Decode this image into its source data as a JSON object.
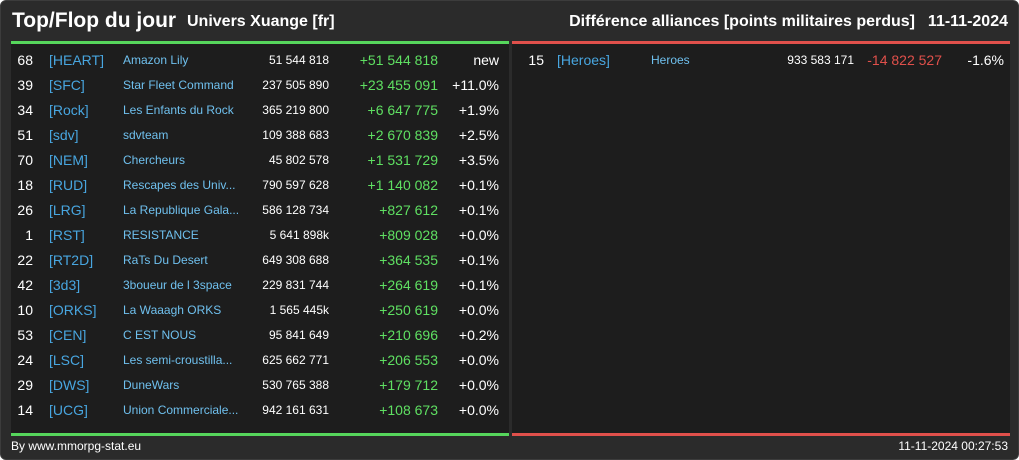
{
  "header": {
    "title": "Top/Flop du jour",
    "universe": "Univers Xuange [fr]",
    "subtitle": "Différence alliances [points militaires perdus]",
    "date": "11-11-2024"
  },
  "top": [
    {
      "rank": "68",
      "tag": "[HEART]",
      "name": "Amazon Lily",
      "points": "51 544 818",
      "diff": "+51 544 818",
      "pct": "new"
    },
    {
      "rank": "39",
      "tag": "[SFC]",
      "name": "Star Fleet Command",
      "points": "237 505 890",
      "diff": "+23 455 091",
      "pct": "+11.0%"
    },
    {
      "rank": "34",
      "tag": "[Rock]",
      "name": "Les Enfants du Rock",
      "points": "365 219 800",
      "diff": "+6 647 775",
      "pct": "+1.9%"
    },
    {
      "rank": "51",
      "tag": "[sdv]",
      "name": "sdvteam",
      "points": "109 388 683",
      "diff": "+2 670 839",
      "pct": "+2.5%"
    },
    {
      "rank": "70",
      "tag": "[NEM]",
      "name": "Chercheurs",
      "points": "45 802 578",
      "diff": "+1 531 729",
      "pct": "+3.5%"
    },
    {
      "rank": "18",
      "tag": "[RUD]",
      "name": "Rescapes des Univ...",
      "points": "790 597 628",
      "diff": "+1 140 082",
      "pct": "+0.1%"
    },
    {
      "rank": "26",
      "tag": "[LRG]",
      "name": "La Republique Gala...",
      "points": "586 128 734",
      "diff": "+827 612",
      "pct": "+0.1%"
    },
    {
      "rank": "1",
      "tag": "[RST]",
      "name": "RESISTANCE",
      "points": "5 641 898k",
      "diff": "+809 028",
      "pct": "+0.0%"
    },
    {
      "rank": "22",
      "tag": "[RT2D]",
      "name": "RaTs Du Desert",
      "points": "649 308 688",
      "diff": "+364 535",
      "pct": "+0.1%"
    },
    {
      "rank": "42",
      "tag": "[3d3]",
      "name": "3boueur de l 3space",
      "points": "229 831 744",
      "diff": "+264 619",
      "pct": "+0.1%"
    },
    {
      "rank": "10",
      "tag": "[ORKS]",
      "name": "La Waaagh ORKS",
      "points": "1 565 445k",
      "diff": "+250 619",
      "pct": "+0.0%"
    },
    {
      "rank": "53",
      "tag": "[CEN]",
      "name": "C EST NOUS",
      "points": "95 841 649",
      "diff": "+210 696",
      "pct": "+0.2%"
    },
    {
      "rank": "24",
      "tag": "[LSC]",
      "name": "Les semi-croustilla...",
      "points": "625 662 771",
      "diff": "+206 553",
      "pct": "+0.0%"
    },
    {
      "rank": "29",
      "tag": "[DWS]",
      "name": "DuneWars",
      "points": "530 765 388",
      "diff": "+179 712",
      "pct": "+0.0%"
    },
    {
      "rank": "14",
      "tag": "[UCG]",
      "name": "Union Commerciale...",
      "points": "942 161 631",
      "diff": "+108 673",
      "pct": "+0.0%"
    }
  ],
  "flop": [
    {
      "rank": "15",
      "tag": "[Heroes]",
      "name": "Heroes",
      "points": "933 583 171",
      "diff": "-14 822 527",
      "pct": "-1.6%"
    }
  ],
  "footer": {
    "source": "By www.mmorpg-stat.eu",
    "timestamp": "11-11-2024 00:27:53"
  },
  "colors": {
    "top_accent": "#56d65c",
    "flop_accent": "#e0504b",
    "tag": "#48a6e0",
    "name": "#6fc0ee"
  }
}
